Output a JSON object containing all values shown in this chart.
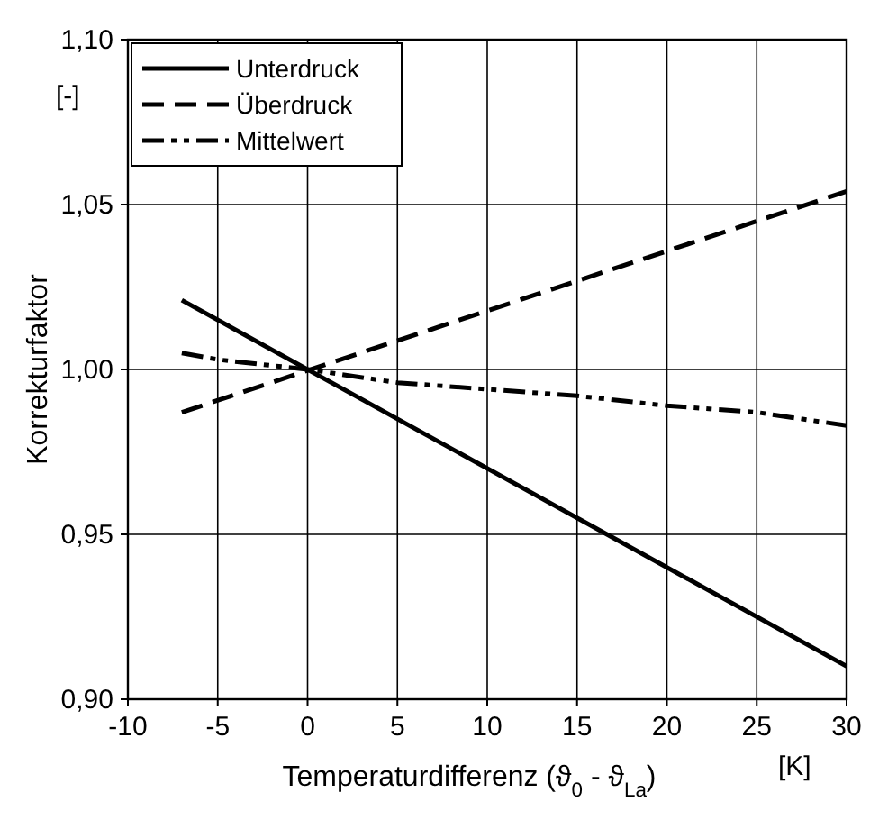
{
  "chart_data": {
    "type": "line",
    "xlabel": "Temperaturdifferenz (ϑ$_{0}$ - ϑ$_{La}$)",
    "ylabel": "Korrekturfaktor",
    "annotations": [
      "[-]",
      "[K]"
    ],
    "xlim": [
      -10,
      30
    ],
    "xticks": [
      -10,
      -5,
      0,
      5,
      10,
      15,
      20,
      25,
      30
    ],
    "ylim": [
      0.9,
      1.1
    ],
    "yticks": [
      {
        "value": 0.9,
        "label": "0,90"
      },
      {
        "value": 0.95,
        "label": "0,95"
      },
      {
        "value": 1.0,
        "label": "1,00"
      },
      {
        "value": 1.05,
        "label": "1,05"
      },
      {
        "value": 1.1,
        "label": "1,10"
      }
    ],
    "grid": true,
    "legend": "top left",
    "series": [
      {
        "name": "Unterdruck",
        "color": "#000000",
        "line_style": "solid",
        "x": [
          -7,
          30
        ],
        "values": [
          1.021,
          0.91
        ]
      },
      {
        "name": "Überdruck",
        "color": "#000000",
        "line_style": "dashed",
        "x": [
          -7,
          30
        ],
        "values": [
          0.987,
          1.054
        ]
      },
      {
        "name": "Mittelwert",
        "color": "#000000",
        "line_style": "dashdot",
        "x": [
          -7,
          -5,
          0,
          5,
          10,
          15,
          20,
          25,
          30
        ],
        "values": [
          1.005,
          1.003,
          1.0,
          0.996,
          0.994,
          0.992,
          0.989,
          0.987,
          0.983
        ]
      }
    ]
  }
}
